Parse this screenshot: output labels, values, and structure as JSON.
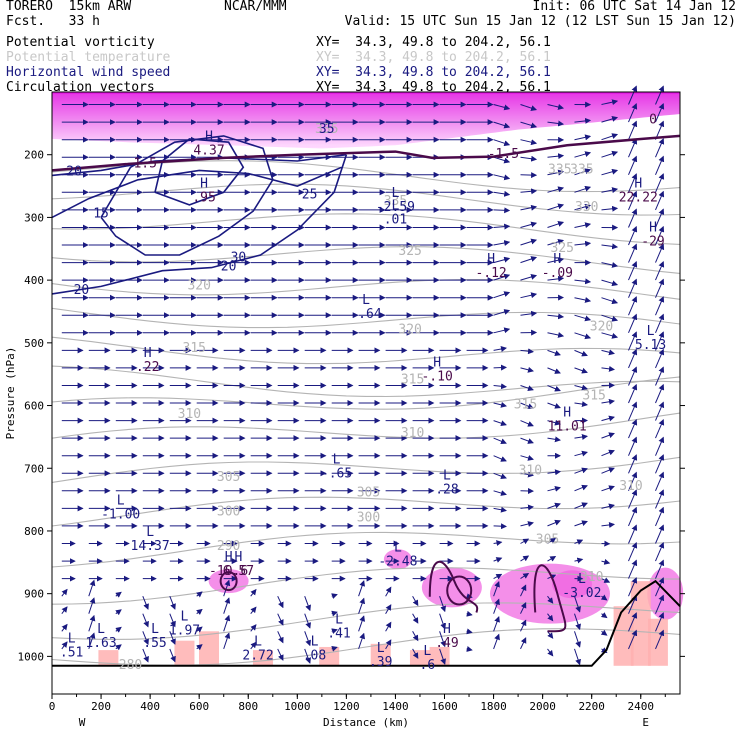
{
  "header": {
    "model": "TORERO  15km ARW",
    "fcst": "Fcst.   33 h",
    "center": "NCAR/MMM",
    "init": "Init: 06 UTC Sat 14 Jan 12",
    "valid": "Valid: 15 UTC Sun 15 Jan 12 (12 LST Sun 15 Jan 12)"
  },
  "legend": [
    {
      "label": "Potential vorticity",
      "xy": "XY=  34.3, 49.8 to 204.2, 56.1",
      "color": "#000000"
    },
    {
      "label": "Potential temperature",
      "xy": "XY=  34.3, 49.8 to 204.2, 56.1",
      "color": "#c8c8c8"
    },
    {
      "label": "Horizontal wind speed",
      "xy": "XY=  34.3, 49.8 to 204.2, 56.1",
      "color": "#1a1a80"
    },
    {
      "label": "Circulation vectors",
      "xy": "XY=  34.3, 49.8 to 204.2, 56.1",
      "color": "#000000"
    }
  ],
  "chart_data": {
    "type": "cross-section",
    "xlabel": "Distance (km)",
    "ylabel": "Pressure (hPa)",
    "x_ticks": [
      0,
      200,
      400,
      600,
      800,
      1000,
      1200,
      1400,
      1600,
      1800,
      2000,
      2200,
      2400
    ],
    "y_ticks": [
      200,
      300,
      400,
      500,
      600,
      700,
      800,
      900,
      1000
    ],
    "xlim": [
      0,
      2560
    ],
    "ylim": [
      1060,
      100
    ],
    "left_end": "W",
    "right_end": "E",
    "theta_labels": [
      {
        "text": "280",
        "x": 320,
        "p": 1020
      },
      {
        "text": "290",
        "x": 720,
        "p": 830
      },
      {
        "text": "300",
        "x": 720,
        "p": 775
      },
      {
        "text": "300",
        "x": 1290,
        "p": 785
      },
      {
        "text": "305",
        "x": 720,
        "p": 720
      },
      {
        "text": "305",
        "x": 1290,
        "p": 745
      },
      {
        "text": "305",
        "x": 2020,
        "p": 820
      },
      {
        "text": "310",
        "x": 560,
        "p": 620
      },
      {
        "text": "310",
        "x": 1470,
        "p": 650
      },
      {
        "text": "310",
        "x": 1950,
        "p": 710
      },
      {
        "text": "310",
        "x": 2360,
        "p": 735
      },
      {
        "text": "310",
        "x": 2200,
        "p": 880
      },
      {
        "text": "315",
        "x": 580,
        "p": 515
      },
      {
        "text": "315",
        "x": 1470,
        "p": 565
      },
      {
        "text": "315",
        "x": 1930,
        "p": 605
      },
      {
        "text": "315",
        "x": 2210,
        "p": 590
      },
      {
        "text": "320",
        "x": 600,
        "p": 415
      },
      {
        "text": "320",
        "x": 1460,
        "p": 485
      },
      {
        "text": "320",
        "x": 2240,
        "p": 480
      },
      {
        "text": "325",
        "x": 1460,
        "p": 360
      },
      {
        "text": "325",
        "x": 2080,
        "p": 355
      },
      {
        "text": "330",
        "x": 2180,
        "p": 290
      },
      {
        "text": "335",
        "x": 2070,
        "p": 230
      },
      {
        "text": "335",
        "x": 2160,
        "p": 230
      },
      {
        "text": "335",
        "x": 1400,
        "p": 280
      },
      {
        "text": "335",
        "x": 1120,
        "p": 165
      }
    ],
    "wind_labels": [
      {
        "text": "20",
        "x": 90,
        "p": 233
      },
      {
        "text": "20",
        "x": 120,
        "p": 422
      },
      {
        "text": "20",
        "x": 720,
        "p": 385
      },
      {
        "text": "15",
        "x": 200,
        "p": 300
      },
      {
        "text": "25",
        "x": 1050,
        "p": 270
      },
      {
        "text": "30",
        "x": 760,
        "p": 370
      },
      {
        "text": "35",
        "x": 1120,
        "p": 165
      }
    ],
    "pv_labels": [
      {
        "text": "1.5",
        "x": 380,
        "p": 220
      },
      {
        "text": "-1.5",
        "x": 1840,
        "p": 205
      },
      {
        "text": "0",
        "x": 2450,
        "p": 150
      }
    ],
    "extrema": [
      {
        "type": "H",
        "value": "4.37",
        "x": 640,
        "p": 200
      },
      {
        "type": "H",
        "value": ".95",
        "x": 620,
        "p": 275
      },
      {
        "type": "H",
        "value": ".22",
        "x": 390,
        "p": 545
      },
      {
        "type": "L",
        "value": "-2.59",
        "x": 1400,
        "p": 290
      },
      {
        "type": "L",
        "value": ".01",
        "x": 1400,
        "p": 310
      },
      {
        "type": "H",
        "value": "-.12",
        "x": 1790,
        "p": 395
      },
      {
        "type": "H",
        "value": "-.09",
        "x": 2060,
        "p": 395
      },
      {
        "type": "L",
        "value": "-.64",
        "x": 1280,
        "p": 460
      },
      {
        "type": "H",
        "value": "-.10",
        "x": 1570,
        "p": 560
      },
      {
        "type": "H",
        "value": "11.01",
        "x": 2100,
        "p": 640
      },
      {
        "type": "L",
        "value": "5.13",
        "x": 2440,
        "p": 510
      },
      {
        "type": "H",
        "value": "22.22",
        "x": 2390,
        "p": 275
      },
      {
        "type": "H",
        "value": "-29",
        "x": 2450,
        "p": 345
      },
      {
        "type": "L",
        "value": "-.65",
        "x": 1160,
        "p": 715
      },
      {
        "type": "L",
        "value": ".28",
        "x": 1610,
        "p": 740
      },
      {
        "type": "L",
        "value": "-1.00",
        "x": 280,
        "p": 780
      },
      {
        "type": "L",
        "value": "14.37",
        "x": 400,
        "p": 830
      },
      {
        "type": "L",
        "value": "-2.48",
        "x": 1410,
        "p": 855
      },
      {
        "type": "H",
        "value": "-10.6",
        "x": 720,
        "p": 870
      },
      {
        "type": "H",
        "value": "6.57",
        "x": 760,
        "p": 870
      },
      {
        "type": "L",
        "value": "-3.02",
        "x": 2160,
        "p": 905
      },
      {
        "type": "L",
        "value": ".51",
        "x": 80,
        "p": 1000
      },
      {
        "type": "L",
        "value": "1.63",
        "x": 200,
        "p": 985
      },
      {
        "type": "L",
        "value": ".55",
        "x": 420,
        "p": 985
      },
      {
        "type": "L",
        "value": "1.97",
        "x": 540,
        "p": 965
      },
      {
        "type": "L",
        "value": "2.72",
        "x": 840,
        "p": 1005
      },
      {
        "type": "L",
        "value": ".08",
        "x": 1070,
        "p": 1005
      },
      {
        "type": "L",
        "value": ".41",
        "x": 1170,
        "p": 970
      },
      {
        "type": "H",
        "value": ".49",
        "x": 1610,
        "p": 985
      },
      {
        "type": "L",
        "value": ".39",
        "x": 1340,
        "p": 1015
      },
      {
        "type": "L",
        "value": ".6",
        "x": 1530,
        "p": 1020
      }
    ],
    "terrain": [
      [
        0,
        1015
      ],
      [
        400,
        1015
      ],
      [
        800,
        1015
      ],
      [
        1200,
        1015
      ],
      [
        1600,
        1015
      ],
      [
        2000,
        1015
      ],
      [
        2200,
        1015
      ],
      [
        2260,
        990
      ],
      [
        2320,
        930
      ],
      [
        2400,
        895
      ],
      [
        2460,
        880
      ],
      [
        2560,
        920
      ]
    ]
  }
}
